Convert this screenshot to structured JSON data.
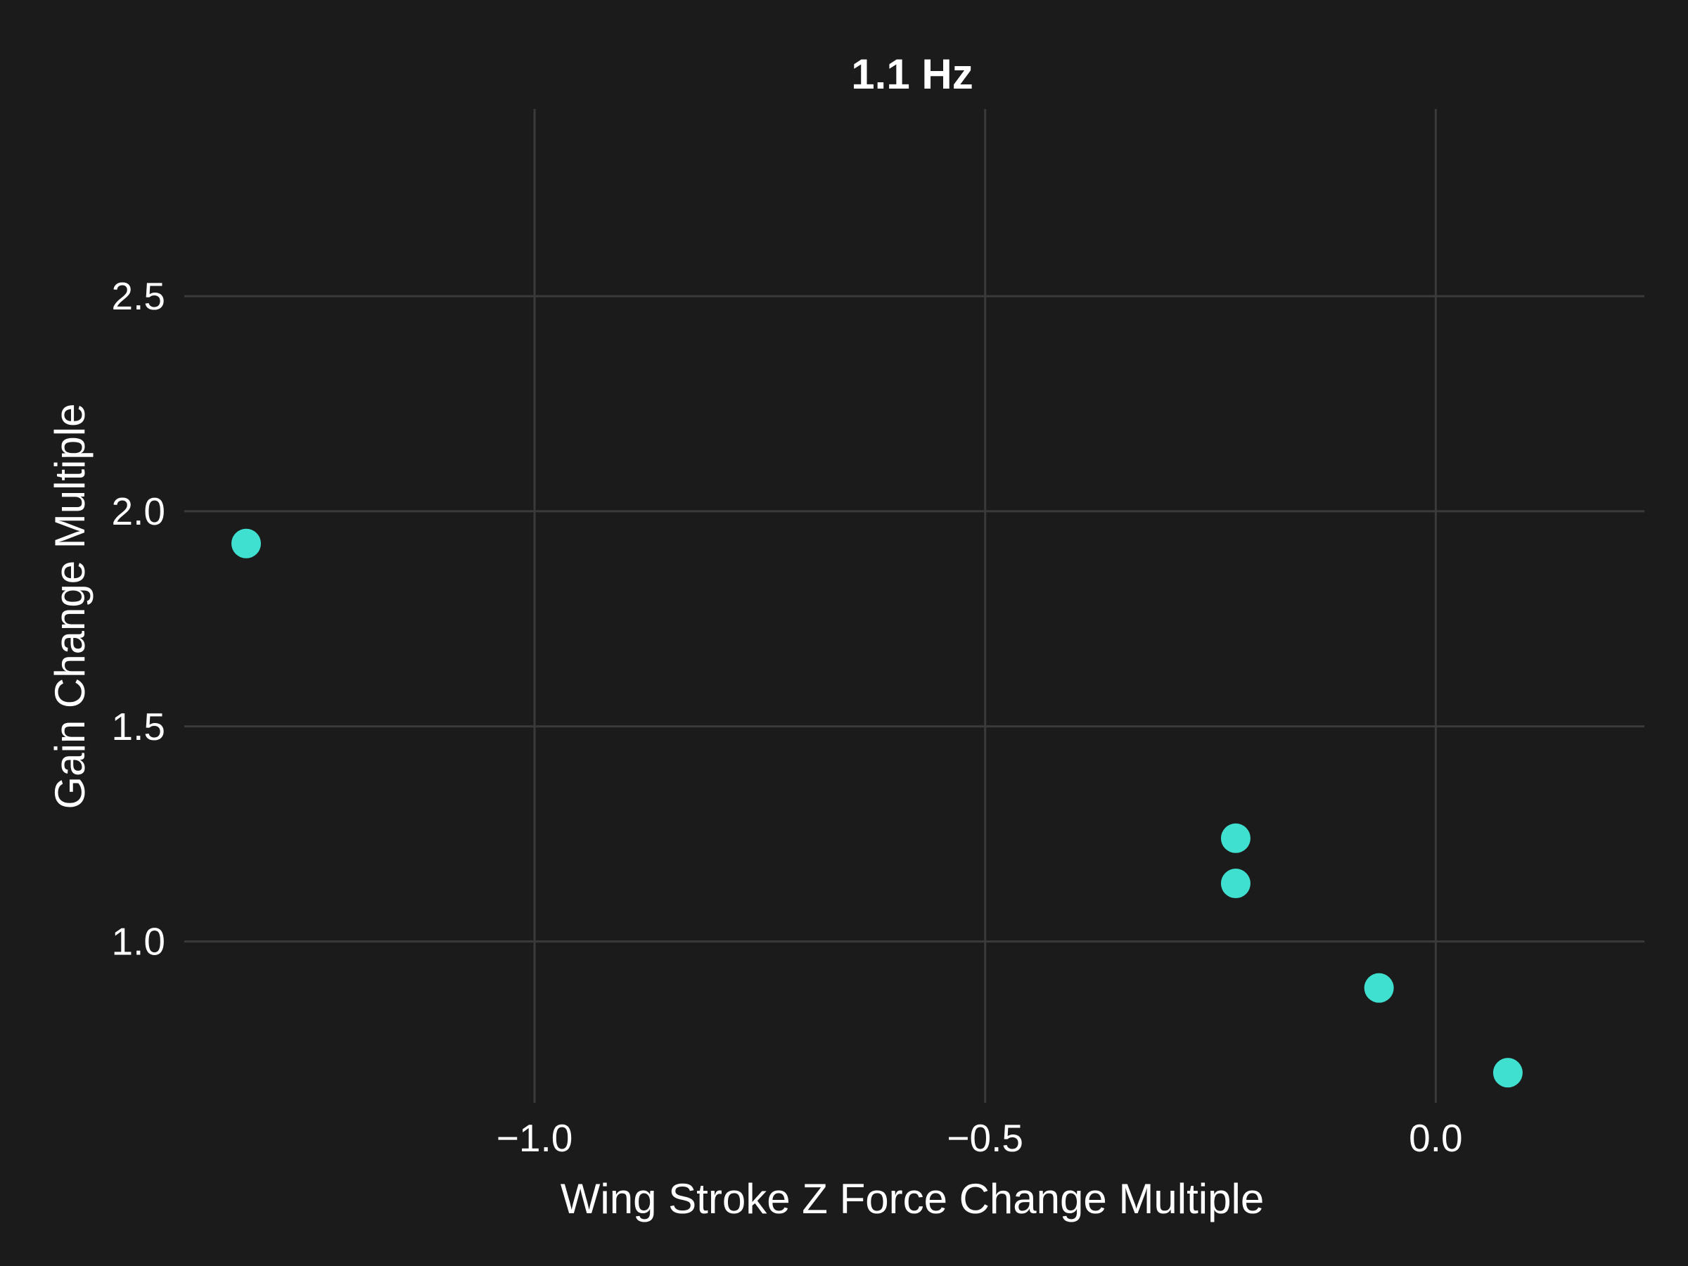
{
  "chart_data": {
    "type": "scatter",
    "title": "1.1 Hz",
    "xlabel": "Wing Stroke Z Force Change Multiple",
    "ylabel": "Gain Change Multiple",
    "xlim": [
      -1.32,
      0.155
    ],
    "ylim": [
      0.625,
      2.935
    ],
    "xticks": [
      -1.0,
      -0.5,
      0.0
    ],
    "xtick_labels": [
      "−1.0",
      "−0.5",
      "0.0"
    ],
    "yticks": [
      1.0,
      1.5,
      2.0,
      2.5
    ],
    "ytick_labels": [
      "1.0",
      "1.5",
      "2.0",
      "2.5"
    ],
    "grid": true,
    "point_color": "#40e0d0",
    "background_color": "#1b1b1b",
    "grid_color": "#3a3a3a",
    "points": [
      {
        "x": -1.32,
        "y": 1.925
      },
      {
        "x": -0.222,
        "y": 1.24
      },
      {
        "x": -0.222,
        "y": 1.135
      },
      {
        "x": -0.063,
        "y": 0.892
      },
      {
        "x": 0.08,
        "y": 0.695
      }
    ]
  }
}
